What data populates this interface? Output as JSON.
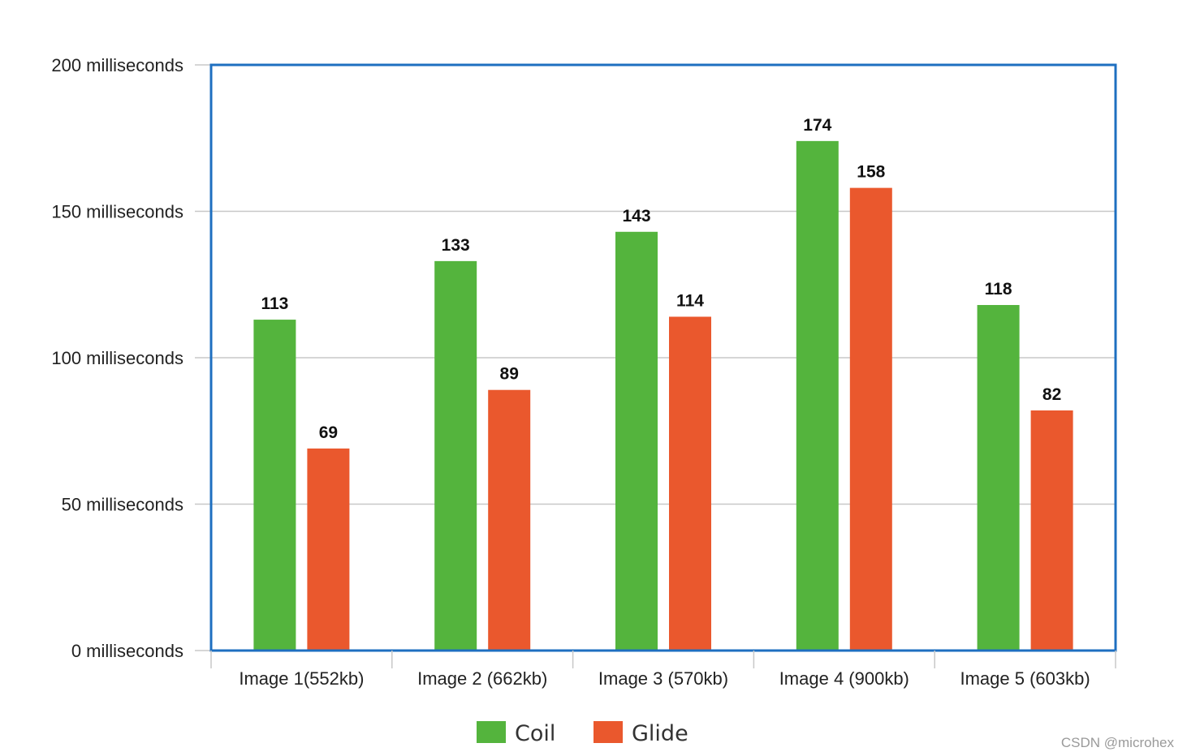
{
  "chart_data": {
    "type": "bar",
    "title": "",
    "xlabel": "",
    "ylabel": "",
    "categories": [
      "Image 1(552kb)",
      "Image 2 (662kb)",
      "Image 3 (570kb)",
      "Image 4 (900kb)",
      "Image 5 (603kb)"
    ],
    "series": [
      {
        "name": "Coil",
        "color": "#54b43d",
        "values": [
          113,
          133,
          143,
          174,
          118
        ],
        "labels": [
          "113",
          "133",
          "143",
          "174",
          "118"
        ]
      },
      {
        "name": "Glide",
        "color": "#ea582d",
        "values": [
          69,
          89,
          114,
          158,
          82
        ],
        "labels": [
          "69",
          "89",
          "114",
          "158",
          "82"
        ]
      }
    ],
    "ylim": [
      0,
      200
    ],
    "yticks": [
      0,
      50,
      100,
      150,
      200
    ],
    "ytick_labels": [
      "0 milliseconds",
      "50 milliseconds",
      "100 milliseconds",
      "150 milliseconds",
      "200 milliseconds"
    ],
    "grid": true,
    "legend_position": "bottom-center",
    "frame_color": "#1e6fc0",
    "grid_color": "#c8c8c8"
  },
  "watermark": "CSDN @microhex"
}
